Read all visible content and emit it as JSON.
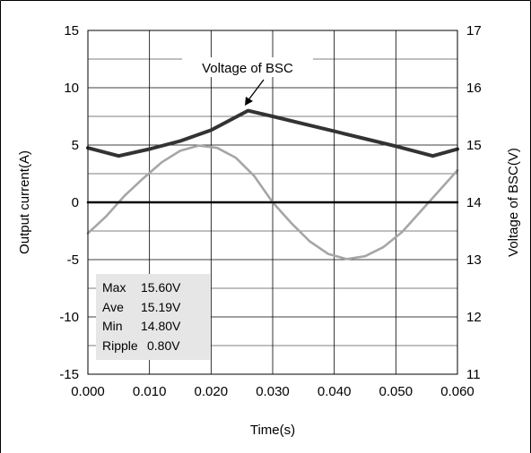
{
  "chart_data": {
    "type": "line",
    "xlabel": "Time(s)",
    "ylabel_left": "Output current(A)",
    "ylabel_right": "Voltage of BSC(V)",
    "xlim": [
      0.0,
      0.06
    ],
    "ylim_left": [
      -15,
      15
    ],
    "ylim_right": [
      11,
      17
    ],
    "x_ticks": [
      "0.000",
      "0.010",
      "0.020",
      "0.030",
      "0.040",
      "0.050",
      "0.060"
    ],
    "y_left_ticks": [
      "15",
      "10",
      "5",
      "0",
      "-5",
      "-10",
      "-15"
    ],
    "y_right_ticks": [
      "17",
      "16",
      "15",
      "14",
      "13",
      "12",
      "11"
    ],
    "grid": true,
    "series": [
      {
        "name": "Voltage of BSC",
        "axis": "right",
        "color": "#333333",
        "x": [
          0.0,
          0.005,
          0.01,
          0.015,
          0.02,
          0.026,
          0.03,
          0.035,
          0.04,
          0.045,
          0.05,
          0.056,
          0.06
        ],
        "y": [
          14.95,
          14.81,
          14.93,
          15.07,
          15.26,
          15.6,
          15.5,
          15.37,
          15.24,
          15.11,
          14.98,
          14.81,
          14.93
        ]
      },
      {
        "name": "Output current",
        "axis": "left",
        "color": "#a6a6a6",
        "x": [
          0.0,
          0.003,
          0.006,
          0.009,
          0.012,
          0.015,
          0.018,
          0.021,
          0.024,
          0.027,
          0.03,
          0.033,
          0.036,
          0.039,
          0.042,
          0.045,
          0.048,
          0.051,
          0.054,
          0.057,
          0.06
        ],
        "y": [
          -2.7,
          -1.2,
          0.6,
          2.1,
          3.5,
          4.5,
          4.95,
          4.75,
          3.9,
          2.3,
          0.0,
          -1.8,
          -3.4,
          -4.5,
          -4.95,
          -4.7,
          -3.9,
          -2.6,
          -0.8,
          1.0,
          2.8
        ]
      },
      {
        "name": "Zero line",
        "axis": "left",
        "color": "#000000",
        "x": [
          0.0,
          0.06
        ],
        "y": [
          0,
          0
        ]
      }
    ],
    "annotations": [
      {
        "text": "Voltage of BSC"
      }
    ],
    "stats": [
      {
        "label": "Max",
        "value": "15.60V"
      },
      {
        "label": "Ave",
        "value": "15.19V"
      },
      {
        "label": "Min",
        "value": "14.80V"
      },
      {
        "label": "Ripple",
        "value": "0.80V"
      }
    ]
  }
}
